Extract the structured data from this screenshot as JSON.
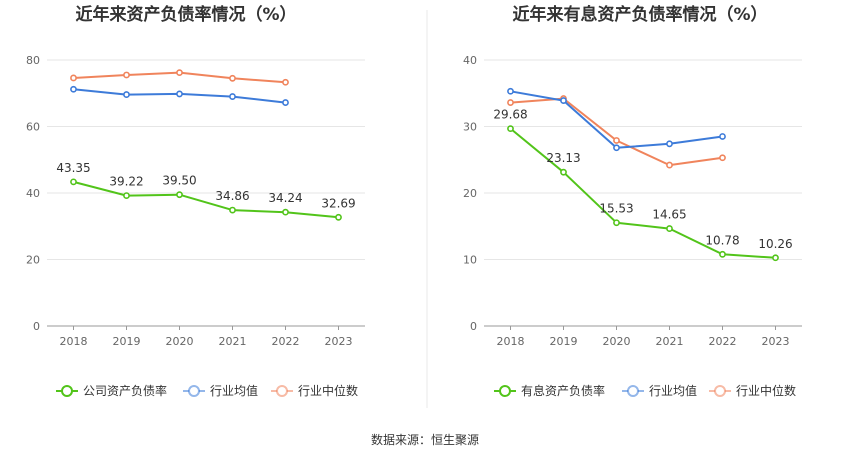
{
  "source_label": "数据来源：恒生聚源",
  "chart_data": [
    {
      "type": "line",
      "title": "近年来资产负债率情况（%）",
      "x": [
        "2018",
        "2019",
        "2020",
        "2021",
        "2022",
        "2023"
      ],
      "ylim": [
        0,
        80
      ],
      "yticks": [
        0,
        20,
        40,
        60,
        80
      ],
      "series": [
        {
          "name": "公司资产负债率",
          "color": "#52c41a",
          "values": [
            43.35,
            39.22,
            39.5,
            34.86,
            34.24,
            32.69
          ],
          "labels": [
            "43.35",
            "39.22",
            "39.50",
            "34.86",
            "34.24",
            "32.69"
          ]
        },
        {
          "name": "行业均值",
          "color": "#3d7bd9",
          "values": [
            71.2,
            69.6,
            69.8,
            69.0,
            67.2,
            null
          ]
        },
        {
          "name": "行业中位数",
          "color": "#f0845c",
          "values": [
            74.6,
            75.5,
            76.2,
            74.5,
            73.3,
            null
          ]
        }
      ]
    },
    {
      "type": "line",
      "title": "近年来有息资产负债率情况（%）",
      "x": [
        "2018",
        "2019",
        "2020",
        "2021",
        "2022",
        "2023"
      ],
      "ylim": [
        0,
        40
      ],
      "yticks": [
        0,
        10,
        20,
        30,
        40
      ],
      "series": [
        {
          "name": "有息资产负债率",
          "color": "#52c41a",
          "values": [
            29.68,
            23.13,
            15.53,
            14.65,
            10.78,
            10.26
          ],
          "labels": [
            "29.68",
            "23.13",
            "15.53",
            "14.65",
            "10.78",
            "10.26"
          ]
        },
        {
          "name": "行业均值",
          "color": "#3d7bd9",
          "values": [
            35.3,
            33.9,
            26.8,
            27.4,
            28.5,
            null
          ]
        },
        {
          "name": "行业中位数",
          "color": "#f0845c",
          "values": [
            33.6,
            34.2,
            27.9,
            24.2,
            25.3,
            null
          ]
        }
      ]
    }
  ]
}
